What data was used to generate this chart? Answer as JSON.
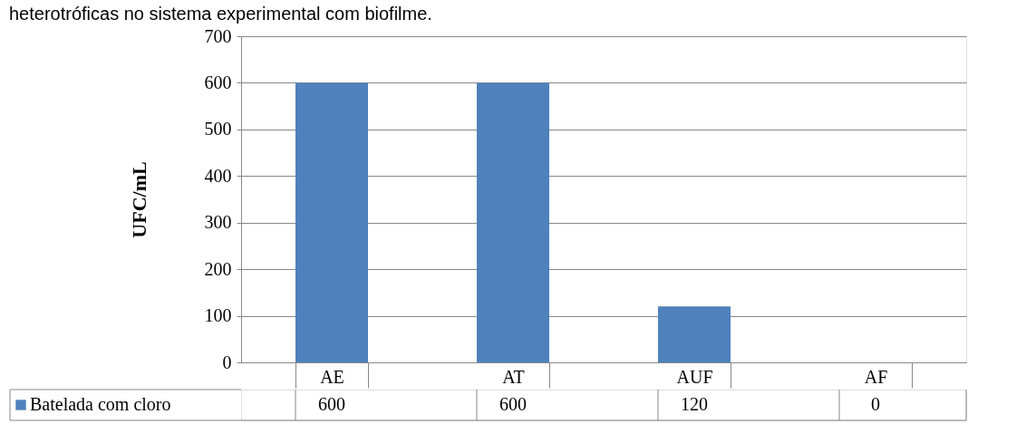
{
  "chart_data": {
    "type": "bar",
    "title": "heterotróficas no sistema experimental com biofilme.",
    "ylabel": "UFC/mL",
    "categories": [
      "AE",
      "AT",
      "AUF",
      "AF"
    ],
    "series": [
      {
        "name": "Batelada com cloro",
        "color": "#4f81bd",
        "values": [
          600,
          600,
          120,
          0
        ]
      }
    ],
    "ylim": [
      0,
      700
    ],
    "yticks": [
      0,
      100,
      200,
      300,
      400,
      500,
      600,
      700
    ],
    "grid": "y",
    "legend": "bottom",
    "data_labels": true
  }
}
